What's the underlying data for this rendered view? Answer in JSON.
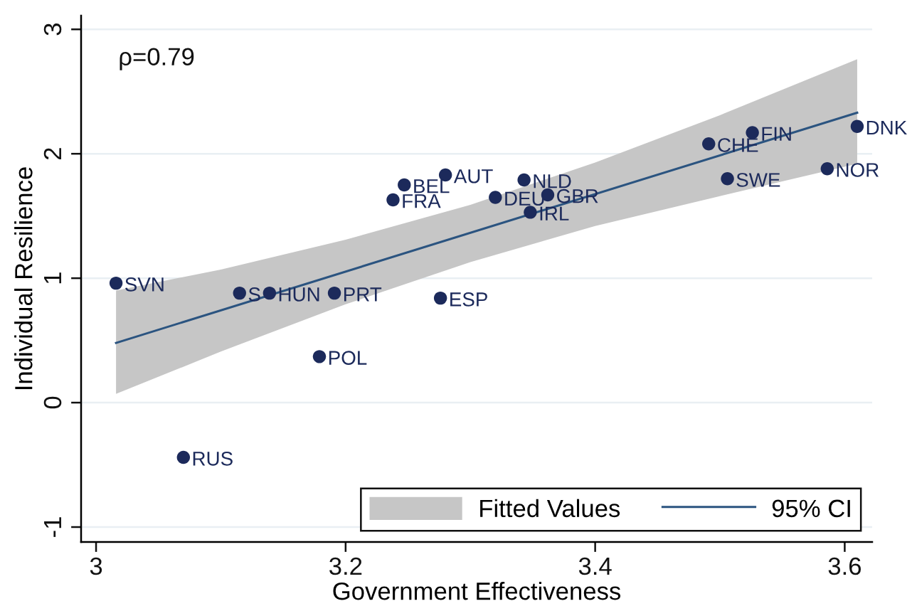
{
  "chart_data": {
    "type": "scatter",
    "xlabel": "Government Effectiveness",
    "ylabel": "Individual Resilience",
    "annotations": [
      "ρ=0.79"
    ],
    "xlim": [
      2.988,
      3.622
    ],
    "ylim": [
      -1.12,
      3.11
    ],
    "xticks": [
      3,
      3.2,
      3.4,
      3.6
    ],
    "yticks": [
      -1,
      0,
      1,
      2,
      3
    ],
    "grid": "y",
    "legend": "bottom right",
    "series": [
      {
        "type": "line",
        "name": "Fitted Values",
        "color": "#c6c6c6",
        "x": [
          3.016,
          3.1,
          3.2,
          3.3,
          3.4,
          3.5,
          3.61
        ],
        "values": [
          null,
          null,
          null,
          null,
          null,
          null,
          null
        ],
        "lower": [
          0.07,
          0.41,
          0.79,
          1.13,
          1.42,
          1.66,
          1.92
        ],
        "upper": [
          0.9,
          1.07,
          1.31,
          1.59,
          1.93,
          2.31,
          2.76
        ]
      },
      {
        "type": "line",
        "name": "95% CI",
        "color": "#2b5480",
        "x": [
          3.016,
          3.61
        ],
        "values": [
          0.48,
          2.33
        ]
      },
      {
        "marker": "circle",
        "color": "#1c2a5b",
        "x": [
          3.016,
          3.115,
          3.139,
          3.191,
          3.179,
          3.07,
          3.276,
          3.238,
          3.247,
          3.28,
          3.32,
          3.343,
          3.362,
          3.348,
          3.491,
          3.526,
          3.506,
          3.586,
          3.61
        ],
        "values": [
          0.96,
          0.88,
          0.88,
          0.88,
          0.37,
          -0.44,
          0.84,
          1.63,
          1.75,
          1.83,
          1.65,
          1.79,
          1.67,
          1.53,
          2.08,
          2.17,
          1.8,
          1.88,
          2.22
        ],
        "value_labels": [
          "SVN",
          "S",
          "HUN",
          "PRT",
          "POL",
          "RUS",
          "ESP",
          "FRA",
          "BEL",
          "AUT",
          "DEU",
          "NLD",
          "GBR",
          "IRL",
          "CHE",
          "FIN",
          "SWE",
          "NOR",
          "DNK"
        ]
      }
    ]
  }
}
